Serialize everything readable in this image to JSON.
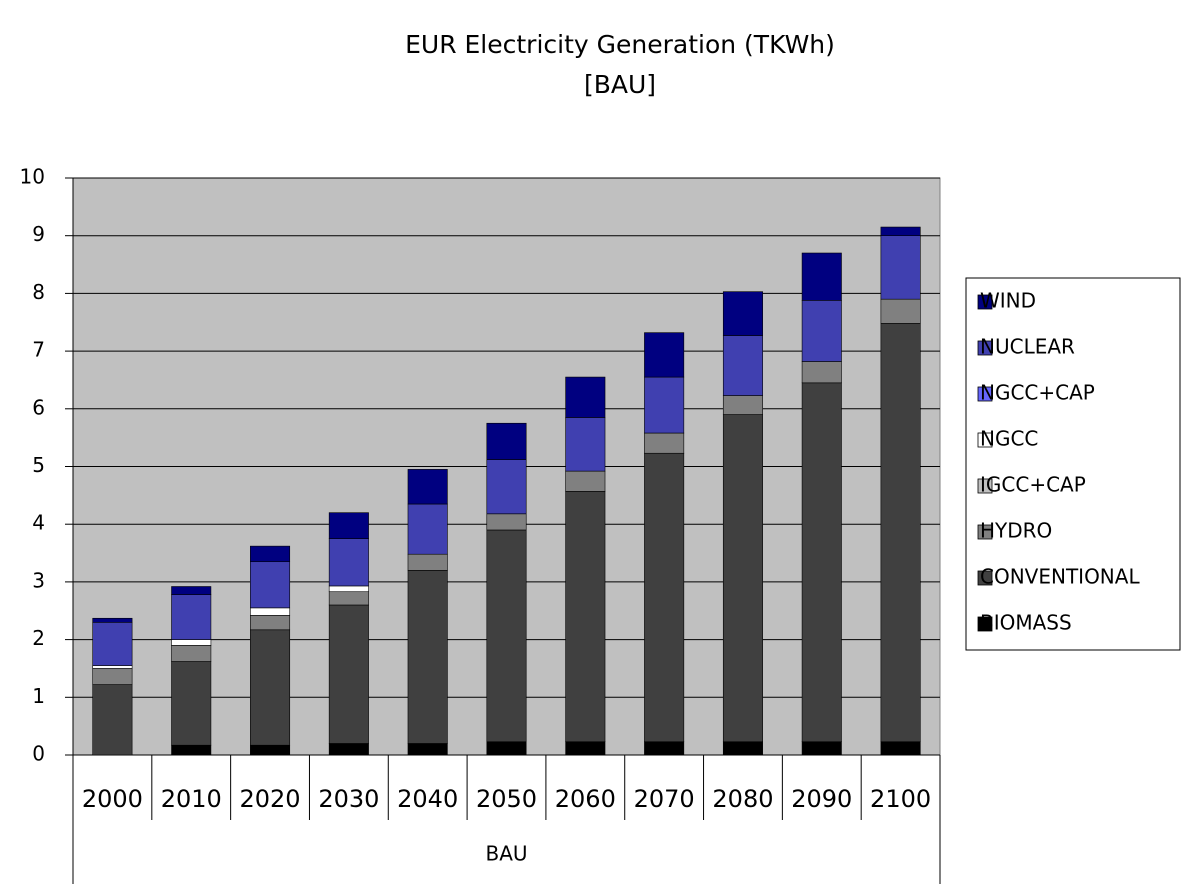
{
  "chart_data": {
    "type": "stacked_bar",
    "title": "EUR Electricity Generation (TKWh)",
    "subtitle": "[BAU]",
    "group_label": "BAU",
    "categories": [
      "2000",
      "2010",
      "2020",
      "2030",
      "2040",
      "2050",
      "2060",
      "2070",
      "2080",
      "2090",
      "2100"
    ],
    "series": [
      {
        "name": "BIOMASS",
        "color": "#000000",
        "values": [
          0,
          0.17,
          0.17,
          0.2,
          0.2,
          0.23,
          0.23,
          0.23,
          0.23,
          0.23,
          0.23
        ]
      },
      {
        "name": "CONVENTIONAL",
        "color": "#404040",
        "values": [
          1.22,
          1.45,
          2.0,
          2.4,
          3.0,
          3.67,
          4.34,
          5.0,
          5.67,
          6.22,
          7.25
        ]
      },
      {
        "name": "HYDRO",
        "color": "#808080",
        "values": [
          0.28,
          0.28,
          0.25,
          0.23,
          0.28,
          0.28,
          0.35,
          0.35,
          0.33,
          0.37,
          0.42
        ]
      },
      {
        "name": "IGCC+CAP",
        "color": "#c0c0c0",
        "values": [
          0,
          0,
          0,
          0,
          0,
          0,
          0,
          0,
          0,
          0,
          0
        ]
      },
      {
        "name": "NGCC",
        "color": "#ffffff",
        "values": [
          0.05,
          0.1,
          0.13,
          0.1,
          0,
          0,
          0,
          0,
          0,
          0,
          0
        ]
      },
      {
        "name": "NGCC+CAP",
        "color": "#6666ff",
        "values": [
          0,
          0,
          0,
          0,
          0,
          0,
          0,
          0,
          0,
          0,
          0
        ]
      },
      {
        "name": "NUCLEAR",
        "color": "#4040b0",
        "values": [
          0.75,
          0.78,
          0.8,
          0.82,
          0.87,
          0.94,
          0.93,
          0.97,
          1.04,
          1.06,
          1.1
        ]
      },
      {
        "name": "WIND",
        "color": "#000080",
        "values": [
          0.07,
          0.14,
          0.27,
          0.45,
          0.6,
          0.63,
          0.7,
          0.77,
          0.76,
          0.82,
          0.15
        ]
      }
    ],
    "ylim": [
      0,
      10
    ],
    "yticks": [
      0,
      1,
      2,
      3,
      4,
      5,
      6,
      7,
      8,
      9,
      10
    ],
    "grid": true,
    "background": "#c0c0c0",
    "legend": "right"
  }
}
